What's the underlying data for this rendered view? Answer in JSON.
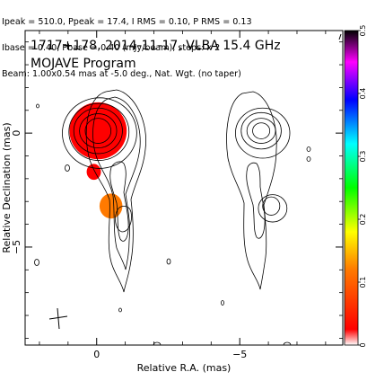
{
  "header": {
    "line1": "Ipeak = 510.0, Ppeak = 17.4, I RMS = 0.10, P RMS = 0.13",
    "line2": "Ibase = 0.40, Pbase = 0.40 (mJy/beam), steps: x 2",
    "line3": "Beam: 1.00x0.54 mas at -5.0 deg., Nat. Wgt. (no taper)"
  },
  "panel": {
    "title": "1717+178, 2014-11-17, VLBA 15.4 GHz",
    "subtitle": "MOJAVE Program"
  },
  "chart_data": {
    "type": "heatmap",
    "xlabel": "Relative R.A. (mas)",
    "ylabel": "Relative Declination (mas)",
    "xlim": [
      2.5,
      -8.6
    ],
    "ylim": [
      -9.3,
      4.5
    ],
    "x_ticks": [
      0,
      -5
    ],
    "x_tick_labels": [
      "0",
      "−5"
    ],
    "y_ticks": [
      0,
      -5
    ],
    "y_tick_labels": [
      "0",
      "−5"
    ],
    "colorbar": {
      "range": [
        0,
        0.5
      ],
      "ticks": [
        0,
        0.1,
        0.2,
        0.3,
        0.4,
        0.5
      ],
      "tick_labels": [
        "0",
        "0.1",
        "0.2",
        "0.3",
        "0.4",
        "0.5"
      ],
      "stops": [
        "#ffffff",
        "#ff0000",
        "#ff7a00",
        "#ffff00",
        "#00ff00",
        "#00ffff",
        "#0000ff",
        "#ff00ff",
        "#000000"
      ]
    },
    "left_panel": {
      "core": {
        "x": -0.05,
        "y": 0.1
      },
      "contours": [
        {
          "cx": -0.05,
          "cy": 0.1,
          "rx": 0.45,
          "ry": 0.55
        },
        {
          "cx": -0.05,
          "cy": 0.1,
          "rx": 0.65,
          "ry": 0.75
        },
        {
          "cx": -0.05,
          "cy": 0.1,
          "rx": 0.85,
          "ry": 1.0
        },
        {
          "cx": -0.08,
          "cy": 0.05,
          "rx": 1.05,
          "ry": 1.25
        },
        {
          "cx": -0.1,
          "cy": 0.0,
          "rx": 1.3,
          "ry": 1.55
        }
      ],
      "color_blobs": [
        {
          "cx": -0.05,
          "cy": 0.1,
          "rx": 1.0,
          "ry": 1.25,
          "value": 0.07
        },
        {
          "cx": 0.1,
          "cy": -1.7,
          "rx": 0.25,
          "ry": 0.35,
          "value": 0.08
        },
        {
          "cx": -0.5,
          "cy": -3.2,
          "rx": 0.4,
          "ry": 0.55,
          "value": 0.15
        }
      ]
    },
    "right_panel": {
      "offset_x": -5.7,
      "contours": [
        {
          "cx": -0.05,
          "cy": 0.1,
          "rx": 0.3,
          "ry": 0.35
        },
        {
          "cx": -0.05,
          "cy": 0.1,
          "rx": 0.5,
          "ry": 0.55
        },
        {
          "cx": -0.05,
          "cy": 0.1,
          "rx": 0.7,
          "ry": 0.8
        },
        {
          "cx": -0.1,
          "cy": 0.0,
          "rx": 0.95,
          "ry": 1.1
        },
        {
          "cx": -0.4,
          "cy": -3.2,
          "rx": 0.3,
          "ry": 0.4
        },
        {
          "cx": -0.45,
          "cy": -3.3,
          "rx": 0.5,
          "ry": 0.6
        }
      ]
    }
  }
}
